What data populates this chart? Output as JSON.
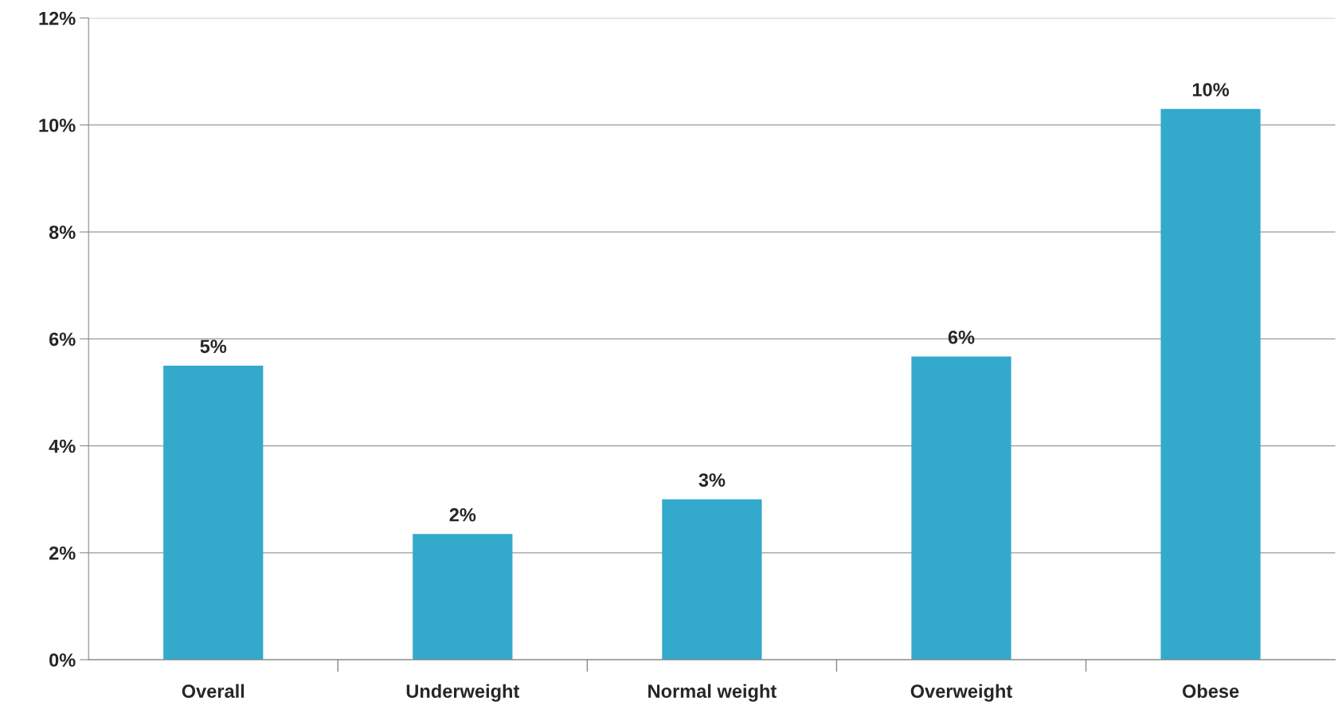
{
  "chart_data": {
    "type": "bar",
    "categories": [
      "Overall",
      "Underweight",
      "Normal weight",
      "Overweight",
      "Obese"
    ],
    "values": [
      5.5,
      2.35,
      3.0,
      5.67,
      10.3
    ],
    "value_labels": [
      "5%",
      "2%",
      "3%",
      "6%",
      "10%"
    ],
    "color": "#33a9cc",
    "ylim": [
      0,
      12
    ],
    "yticks": [
      {
        "value": 0,
        "label": "0%"
      },
      {
        "value": 2,
        "label": "2%"
      },
      {
        "value": 4,
        "label": "4%"
      },
      {
        "value": 6,
        "label": "6%"
      },
      {
        "value": 8,
        "label": "8%"
      },
      {
        "value": 10,
        "label": "10%"
      },
      {
        "value": 12,
        "label": "12%"
      }
    ],
    "grid": "y"
  }
}
